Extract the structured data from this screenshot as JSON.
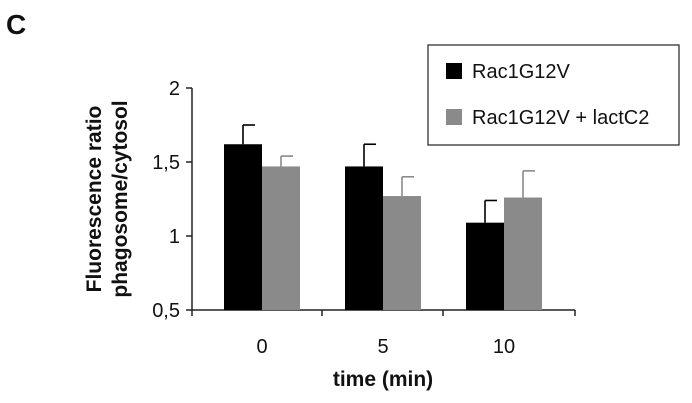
{
  "panel_label": "C",
  "chart_data": {
    "type": "bar",
    "categories": [
      "0",
      "5",
      "10"
    ],
    "series": [
      {
        "name": "Rac1G12V",
        "color": "#000000",
        "values": [
          1.62,
          1.47,
          1.09
        ],
        "errors": [
          0.13,
          0.15,
          0.15
        ]
      },
      {
        "name": "Rac1G12V + lactC2",
        "color": "#8a8a8a",
        "values": [
          1.47,
          1.27,
          1.26
        ],
        "errors": [
          0.07,
          0.13,
          0.18
        ]
      }
    ],
    "xlabel": "time (min)",
    "ylabel": [
      "Fluorescence ratio",
      "phagosome/cytosol"
    ],
    "ylim": [
      0.5,
      2
    ],
    "yticks": [
      0.5,
      1,
      1.5,
      2
    ],
    "ytick_labels": [
      "0,5",
      "1",
      "1,5",
      "2"
    ],
    "grid": false,
    "legend_position": "top-right"
  }
}
